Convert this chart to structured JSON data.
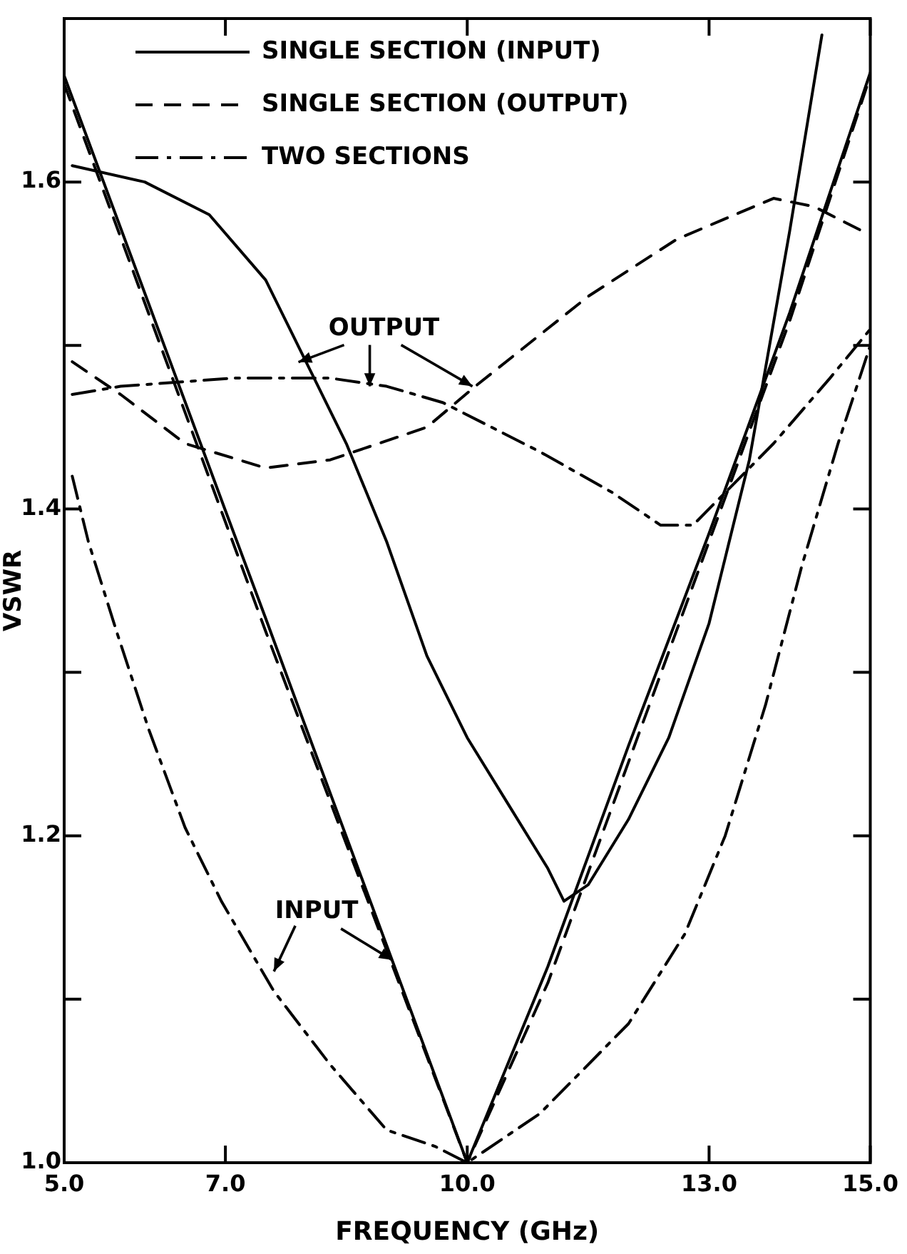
{
  "chart_data": {
    "type": "line",
    "xlabel": "FREQUENCY (GHz)",
    "ylabel": "VSWR",
    "xlim": [
      5,
      15
    ],
    "ylim": [
      1.0,
      1.7
    ],
    "xticks": [
      {
        "value": 5,
        "label": "5.0"
      },
      {
        "value": 7,
        "label": "7.0"
      },
      {
        "value": 10,
        "label": "10.0"
      },
      {
        "value": 13,
        "label": "13.0"
      },
      {
        "value": 15,
        "label": "15.0"
      }
    ],
    "yticks": [
      {
        "value": 1.0,
        "label": "1.0"
      },
      {
        "value": 1.1,
        "label": null
      },
      {
        "value": 1.2,
        "label": "1.2"
      },
      {
        "value": 1.3,
        "label": null
      },
      {
        "value": 1.4,
        "label": "1.4"
      },
      {
        "value": 1.5,
        "label": null
      },
      {
        "value": 1.6,
        "label": "1.6"
      }
    ],
    "grid": false,
    "legend": "top left",
    "marker": "none",
    "annotations": [
      {
        "text": "OUTPUT",
        "x": 10.1,
        "y": 1.475
      },
      {
        "text": "INPUT",
        "x": 9.07,
        "y": 1.124
      }
    ],
    "series": [
      {
        "name": "SINGLE SECTION (INPUT)",
        "color": "#000000",
        "line_style": "solid",
        "x": [
          5,
          6,
          7,
          7.5,
          8,
          9,
          10,
          11,
          12,
          13,
          14,
          15
        ],
        "values": [
          1.665,
          1.532,
          1.399,
          1.333,
          1.266,
          1.133,
          1.0,
          1.12,
          1.255,
          1.385,
          1.52,
          1.667
        ]
      },
      {
        "name": "SINGLE SECTION (OUTPUT)",
        "color": "#000000",
        "line_style": "dashed",
        "x": [
          5.1,
          5.7,
          6.5,
          7.5,
          8.3,
          9.5,
          10.1,
          11.5,
          12.6,
          13.8,
          14.3,
          14.9
        ],
        "values": [
          1.49,
          1.47,
          1.44,
          1.425,
          1.43,
          1.45,
          1.475,
          1.53,
          1.565,
          1.59,
          1.585,
          1.57
        ]
      },
      {
        "name": "TWO SECTIONS",
        "color": "#000000",
        "line_style": "dashdot",
        "x": [
          5.1,
          5.3,
          5.65,
          6.05,
          6.5,
          6.95,
          7.6,
          8.3,
          9,
          9.6,
          10,
          10.9,
          12,
          12.7,
          13.2,
          13.7,
          14.15,
          14.6,
          15
        ],
        "values": [
          1.42,
          1.38,
          1.325,
          1.265,
          1.205,
          1.16,
          1.105,
          1.06,
          1.02,
          1.01,
          1.0,
          1.03,
          1.085,
          1.14,
          1.2,
          1.28,
          1.365,
          1.44,
          1.5
        ]
      },
      {
        "color": "#000000",
        "line_style": "solid",
        "x": [
          5.1,
          6,
          6.8,
          7.5,
          8,
          8.5,
          9,
          9.5,
          10,
          10.5,
          11,
          11.2,
          11.5,
          12,
          12.5,
          13,
          13.5,
          14,
          14.4
        ],
        "values": [
          1.61,
          1.6,
          1.58,
          1.54,
          1.49,
          1.44,
          1.38,
          1.31,
          1.26,
          1.22,
          1.18,
          1.16,
          1.17,
          1.21,
          1.26,
          1.33,
          1.43,
          1.57,
          1.69
        ]
      },
      {
        "color": "#000000",
        "line_style": "dashed",
        "x": [
          5,
          7.5,
          10,
          11,
          12,
          13,
          14,
          15
        ],
        "values": [
          1.66,
          1.325,
          1.0,
          1.11,
          1.245,
          1.38,
          1.515,
          1.665
        ]
      },
      {
        "color": "#000000",
        "line_style": "dashdot",
        "x": [
          5.1,
          5.7,
          7.1,
          8.3,
          9,
          9.7,
          10.9,
          11.8,
          12.4,
          12.8,
          13.2,
          13.8,
          14.5,
          15
        ],
        "values": [
          1.47,
          1.475,
          1.48,
          1.48,
          1.475,
          1.465,
          1.435,
          1.41,
          1.39,
          1.39,
          1.41,
          1.44,
          1.48,
          1.51
        ]
      }
    ]
  }
}
